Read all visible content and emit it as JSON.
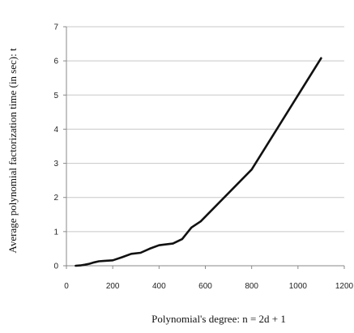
{
  "chart_data": {
    "type": "line",
    "xlabel": "Polynomial's degree: n = 2d + 1",
    "ylabel": "Average polynomial factorization time (in sec): t",
    "xlim": [
      0,
      1200
    ],
    "ylim": [
      0,
      7
    ],
    "xticks": [
      0,
      200,
      400,
      600,
      800,
      1000,
      1200
    ],
    "yticks": [
      0,
      1,
      2,
      3,
      4,
      5,
      6,
      7
    ],
    "grid": "horizontal",
    "legend": "none",
    "line_color": "#111111",
    "gridline_color": "#c8c8c8",
    "series": [
      {
        "x": [
          40,
          60,
          80,
          100,
          120,
          140,
          160,
          200,
          240,
          280,
          320,
          360,
          400,
          420,
          460,
          500,
          540,
          580,
          800,
          1100
        ],
        "y": [
          0.0,
          0.01,
          0.03,
          0.06,
          0.1,
          0.13,
          0.14,
          0.16,
          0.25,
          0.35,
          0.38,
          0.5,
          0.6,
          0.62,
          0.65,
          0.78,
          1.12,
          1.3,
          2.82,
          6.08
        ]
      }
    ]
  }
}
